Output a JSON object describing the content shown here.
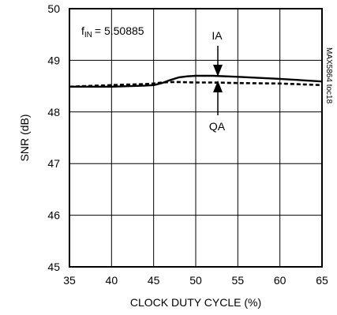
{
  "chart_data": {
    "type": "line",
    "xlabel": "CLOCK DUTY CYCLE (%)",
    "ylabel": "SNR (dB)",
    "xlim": [
      35,
      65
    ],
    "ylim": [
      45,
      50
    ],
    "xticks": [
      35,
      40,
      45,
      50,
      55,
      60,
      65
    ],
    "yticks": [
      45,
      46,
      47,
      48,
      49,
      50
    ],
    "grid": true,
    "series": [
      {
        "name": "IA",
        "style": "solid",
        "x": [
          35,
          40,
          44,
          45,
          46,
          47,
          48,
          49,
          50,
          52,
          55,
          60,
          65
        ],
        "y": [
          48.49,
          48.49,
          48.51,
          48.52,
          48.56,
          48.62,
          48.67,
          48.69,
          48.7,
          48.7,
          48.68,
          48.64,
          48.59
        ]
      },
      {
        "name": "QA",
        "style": "dashed",
        "x": [
          35,
          40,
          44,
          45,
          46,
          47,
          48,
          50,
          52,
          55,
          60,
          65
        ],
        "y": [
          48.49,
          48.52,
          48.54,
          48.55,
          48.57,
          48.58,
          48.58,
          48.57,
          48.57,
          48.56,
          48.55,
          48.52
        ]
      }
    ],
    "annotations": {
      "freq": "f",
      "freq_sub": "IN",
      "freq_value": "= 5.50885",
      "ia": "IA",
      "qa": "QA",
      "side_label": "MAX5864 toc18"
    }
  }
}
